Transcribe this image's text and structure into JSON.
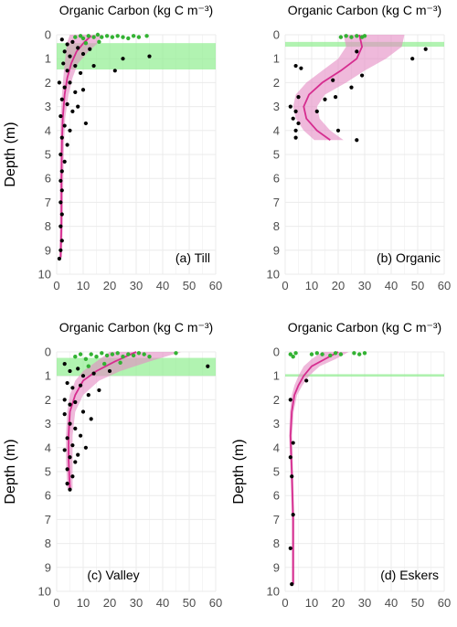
{
  "figure": {
    "colors": {
      "grid": "#ebebeb",
      "axis_text": "#4d4d4d",
      "profile_line": "#d62d8f",
      "profile_band": "#e58bc3",
      "surface_points": "#33b233",
      "deep_points": "#000000",
      "horizon_band": "#90ee90"
    }
  },
  "chart_data": [
    {
      "panel_id": "till",
      "type": "scatter",
      "title": "Organic Carbon (kg C m⁻³)",
      "ylabel": "Depth (m)",
      "panel_label": "(a) Till",
      "xlim": [
        0,
        60
      ],
      "ylim": [
        10,
        0
      ],
      "x_ticks": [
        0,
        10,
        20,
        30,
        40,
        50,
        60
      ],
      "y_ticks": [
        0,
        1,
        2,
        3,
        4,
        5,
        6,
        7,
        8,
        9,
        10
      ],
      "horizon_band": [
        0.35,
        1.45
      ],
      "fitted_curve": {
        "depth": [
          0.05,
          0.3,
          0.7,
          1.2,
          1.8,
          2.5,
          3.5,
          4.5,
          6,
          8,
          9.3
        ],
        "value": [
          13,
          10.5,
          7.5,
          5.5,
          4,
          3,
          2.3,
          2,
          1.8,
          1.8,
          1.5
        ]
      },
      "fitted_band": {
        "depth": [
          0,
          0.3,
          0.7,
          1.2,
          1.8,
          2.5,
          3.5,
          4.5,
          6,
          8,
          9.3
        ],
        "lower": [
          5,
          4,
          3.5,
          3,
          2.5,
          2,
          1.5,
          1.3,
          1.2,
          1.2,
          1
        ],
        "upper": [
          17,
          16,
          12,
          8,
          6,
          4.5,
          3.2,
          2.8,
          2.5,
          2.3,
          2
        ]
      },
      "surface_points": [
        {
          "x": 7,
          "y": 0.1
        },
        {
          "x": 9,
          "y": 0.05
        },
        {
          "x": 10,
          "y": 0.15
        },
        {
          "x": 12,
          "y": 0.05
        },
        {
          "x": 14,
          "y": 0.1
        },
        {
          "x": 15.5,
          "y": 0
        },
        {
          "x": 17,
          "y": 0.1
        },
        {
          "x": 19,
          "y": 0.05
        },
        {
          "x": 21,
          "y": 0.1
        },
        {
          "x": 23,
          "y": 0.05
        },
        {
          "x": 25,
          "y": 0.1
        },
        {
          "x": 27,
          "y": 0.15
        },
        {
          "x": 29,
          "y": 0.05
        },
        {
          "x": 31,
          "y": 0.1
        },
        {
          "x": 34,
          "y": 0.05
        },
        {
          "x": 11,
          "y": 0.35
        },
        {
          "x": 16,
          "y": 0.3
        }
      ],
      "deep_points": [
        {
          "x": 2,
          "y": 0.2
        },
        {
          "x": 4,
          "y": 0.4
        },
        {
          "x": 6,
          "y": 0.3
        },
        {
          "x": 3,
          "y": 0.7
        },
        {
          "x": 5,
          "y": 0.9
        },
        {
          "x": 8,
          "y": 0.55
        },
        {
          "x": 10,
          "y": 0.8
        },
        {
          "x": 12.5,
          "y": 0.6
        },
        {
          "x": 35,
          "y": 0.9
        },
        {
          "x": 2.5,
          "y": 1.2
        },
        {
          "x": 4,
          "y": 1.5
        },
        {
          "x": 7,
          "y": 1.3
        },
        {
          "x": 9,
          "y": 1.6
        },
        {
          "x": 14,
          "y": 1.3
        },
        {
          "x": 22,
          "y": 1.5
        },
        {
          "x": 25,
          "y": 1.0
        },
        {
          "x": 1,
          "y": 2.0
        },
        {
          "x": 3,
          "y": 2.2
        },
        {
          "x": 5,
          "y": 2.0
        },
        {
          "x": 7,
          "y": 2.4
        },
        {
          "x": 10,
          "y": 2.3
        },
        {
          "x": 2,
          "y": 2.7
        },
        {
          "x": 4,
          "y": 2.9
        },
        {
          "x": 6,
          "y": 3.2
        },
        {
          "x": 8,
          "y": 3.0
        },
        {
          "x": 11,
          "y": 3.7
        },
        {
          "x": 1.5,
          "y": 3.4
        },
        {
          "x": 3,
          "y": 3.8
        },
        {
          "x": 5,
          "y": 4.0
        },
        {
          "x": 2,
          "y": 4.3
        },
        {
          "x": 4,
          "y": 4.6
        },
        {
          "x": 1.5,
          "y": 5.0
        },
        {
          "x": 3,
          "y": 5.3
        },
        {
          "x": 2,
          "y": 5.7
        },
        {
          "x": 1.5,
          "y": 6.1
        },
        {
          "x": 2,
          "y": 6.5
        },
        {
          "x": 1.5,
          "y": 7.0
        },
        {
          "x": 2,
          "y": 7.5
        },
        {
          "x": 1.5,
          "y": 8.0
        },
        {
          "x": 2,
          "y": 8.6
        },
        {
          "x": 1.5,
          "y": 9.0
        },
        {
          "x": 1,
          "y": 9.35
        }
      ]
    },
    {
      "panel_id": "organic",
      "type": "scatter",
      "title": "Organic Carbon (kg C m⁻³)",
      "ylabel": "",
      "panel_label": "(b) Organic",
      "xlim": [
        0,
        60
      ],
      "ylim": [
        10,
        0
      ],
      "x_ticks": [
        0,
        10,
        20,
        30,
        40,
        50,
        60
      ],
      "y_ticks": [
        0,
        1,
        2,
        3,
        4,
        5,
        6,
        7,
        8,
        9,
        10
      ],
      "horizon_band": [
        0.3,
        0.5
      ],
      "fitted_curve": {
        "depth": [
          0,
          0.5,
          1.0,
          1.5,
          2.0,
          2.5,
          3.0,
          3.5,
          4.0,
          4.4
        ],
        "value": [
          28,
          29,
          27,
          21,
          14,
          9,
          7,
          8,
          12,
          17
        ]
      },
      "fitted_band": {
        "depth": [
          0,
          0.5,
          1.0,
          1.5,
          2.0,
          2.5,
          3.0,
          3.5,
          4.0,
          4.4
        ],
        "lower": [
          22,
          23,
          20,
          14,
          8,
          4,
          3,
          4,
          7,
          11
        ],
        "upper": [
          45,
          44,
          38,
          30,
          23,
          15,
          12,
          13,
          17,
          22
        ]
      },
      "surface_points": [
        {
          "x": 21,
          "y": 0.1
        },
        {
          "x": 23,
          "y": 0.05
        },
        {
          "x": 25,
          "y": 0.1
        },
        {
          "x": 27,
          "y": 0.05
        },
        {
          "x": 29,
          "y": 0.1
        },
        {
          "x": 30,
          "y": 0.05
        }
      ],
      "deep_points": [
        {
          "x": 53,
          "y": 0.6
        },
        {
          "x": 48,
          "y": 1.0
        },
        {
          "x": 27,
          "y": 0.7
        },
        {
          "x": 4,
          "y": 1.3
        },
        {
          "x": 6,
          "y": 1.4
        },
        {
          "x": 29,
          "y": 1.7
        },
        {
          "x": 18,
          "y": 1.9
        },
        {
          "x": 25,
          "y": 2.2
        },
        {
          "x": 5,
          "y": 2.6
        },
        {
          "x": 19,
          "y": 2.6
        },
        {
          "x": 15,
          "y": 2.7
        },
        {
          "x": 2,
          "y": 3.0
        },
        {
          "x": 4,
          "y": 3.2
        },
        {
          "x": 12,
          "y": 3.2
        },
        {
          "x": 3,
          "y": 3.5
        },
        {
          "x": 5,
          "y": 3.7
        },
        {
          "x": 4,
          "y": 4.0
        },
        {
          "x": 20,
          "y": 4.0
        },
        {
          "x": 4,
          "y": 4.3
        },
        {
          "x": 27,
          "y": 4.4
        }
      ]
    },
    {
      "panel_id": "valley",
      "type": "scatter",
      "title": "Organic Carbon (kg C m⁻³)",
      "ylabel": "Depth (m)",
      "panel_label": "(c) Valley",
      "xlim": [
        0,
        60
      ],
      "ylim": [
        10,
        0
      ],
      "x_ticks": [
        0,
        10,
        20,
        30,
        40,
        50,
        60
      ],
      "y_ticks": [
        0,
        1,
        2,
        3,
        4,
        5,
        6,
        7,
        8,
        9,
        10
      ],
      "horizon_band": [
        0.25,
        1.0
      ],
      "fitted_curve": {
        "depth": [
          0,
          0.4,
          0.8,
          1.2,
          1.8,
          2.5,
          3.5,
          4.5,
          5.7
        ],
        "value": [
          30,
          22,
          15,
          10,
          7,
          5,
          4.5,
          4.5,
          5
        ]
      },
      "fitted_band": {
        "depth": [
          0,
          0.4,
          0.8,
          1.2,
          1.8,
          2.5,
          3.5,
          4.5,
          5.7
        ],
        "lower": [
          20,
          15,
          10,
          7,
          5,
          4,
          3.5,
          3.5,
          4
        ],
        "upper": [
          47,
          35,
          24,
          16,
          10,
          7,
          6,
          6,
          6
        ]
      },
      "surface_points": [
        {
          "x": 7,
          "y": 0.2
        },
        {
          "x": 9,
          "y": 0.1
        },
        {
          "x": 11,
          "y": 0.3
        },
        {
          "x": 13,
          "y": 0.1
        },
        {
          "x": 15,
          "y": 0.2
        },
        {
          "x": 17,
          "y": 0.05
        },
        {
          "x": 19,
          "y": 0.15
        },
        {
          "x": 21,
          "y": 0.1
        },
        {
          "x": 23,
          "y": 0.05
        },
        {
          "x": 25,
          "y": 0.2
        },
        {
          "x": 27,
          "y": 0.1
        },
        {
          "x": 29,
          "y": 0.15
        },
        {
          "x": 31,
          "y": 0.05
        },
        {
          "x": 33,
          "y": 0.1
        },
        {
          "x": 35,
          "y": 0.2
        },
        {
          "x": 45,
          "y": 0.05
        },
        {
          "x": 12,
          "y": 0.6
        },
        {
          "x": 18,
          "y": 0.5
        },
        {
          "x": 24,
          "y": 0.45
        }
      ],
      "deep_points": [
        {
          "x": 57,
          "y": 0.6
        },
        {
          "x": 3,
          "y": 0.5
        },
        {
          "x": 5,
          "y": 0.8
        },
        {
          "x": 8,
          "y": 0.7
        },
        {
          "x": 10,
          "y": 1.0
        },
        {
          "x": 14,
          "y": 0.9
        },
        {
          "x": 20,
          "y": 0.8
        },
        {
          "x": 4,
          "y": 1.3
        },
        {
          "x": 6,
          "y": 1.5
        },
        {
          "x": 9,
          "y": 1.4
        },
        {
          "x": 12,
          "y": 1.8
        },
        {
          "x": 16,
          "y": 1.6
        },
        {
          "x": 3,
          "y": 2.0
        },
        {
          "x": 5,
          "y": 2.2
        },
        {
          "x": 7,
          "y": 2.1
        },
        {
          "x": 10,
          "y": 2.5
        },
        {
          "x": 13,
          "y": 2.8
        },
        {
          "x": 3,
          "y": 2.6
        },
        {
          "x": 5,
          "y": 3.0
        },
        {
          "x": 7,
          "y": 3.2
        },
        {
          "x": 9,
          "y": 3.5
        },
        {
          "x": 4,
          "y": 3.6
        },
        {
          "x": 6,
          "y": 3.9
        },
        {
          "x": 3,
          "y": 4.1
        },
        {
          "x": 5,
          "y": 4.4
        },
        {
          "x": 7,
          "y": 4.6
        },
        {
          "x": 4,
          "y": 4.9
        },
        {
          "x": 6,
          "y": 5.2
        },
        {
          "x": 4,
          "y": 5.5
        },
        {
          "x": 5,
          "y": 5.75
        },
        {
          "x": 11,
          "y": 4.0
        },
        {
          "x": 8,
          "y": 4.3
        }
      ]
    },
    {
      "panel_id": "eskers",
      "type": "scatter",
      "title": "Organic Carbon (kg C m⁻³)",
      "ylabel": "Depth (m)",
      "panel_label": "(d) Eskers",
      "xlim": [
        0,
        60
      ],
      "ylim": [
        10,
        0
      ],
      "x_ticks": [
        0,
        10,
        20,
        30,
        40,
        50,
        60
      ],
      "y_ticks": [
        0,
        1,
        2,
        3,
        4,
        5,
        6,
        7,
        8,
        9,
        10
      ],
      "horizon_band": [
        0.93,
        1.03
      ],
      "fitted_curve": {
        "depth": [
          0,
          0.3,
          0.6,
          1.0,
          1.4,
          1.8,
          2.5,
          3.5,
          5,
          7,
          9.7
        ],
        "value": [
          20,
          15,
          10,
          7,
          5,
          3.5,
          2.5,
          2,
          2.5,
          3,
          3
        ]
      },
      "fitted_band": {
        "depth": [
          0,
          0.3,
          0.6,
          1.0,
          1.4,
          1.8,
          2.5,
          3.5,
          5,
          7,
          9.7
        ],
        "lower": [
          14,
          10,
          7,
          5,
          3.5,
          2.5,
          1.8,
          1.5,
          2,
          2.5,
          2.5
        ],
        "upper": [
          24,
          19,
          13,
          9,
          6.5,
          4.5,
          3.2,
          2.6,
          3,
          3.5,
          3.5
        ]
      },
      "surface_points": [
        {
          "x": 2,
          "y": 0.1
        },
        {
          "x": 4,
          "y": 0.05
        },
        {
          "x": 10,
          "y": 0.1
        },
        {
          "x": 12,
          "y": 0.05
        },
        {
          "x": 14,
          "y": 0.1
        },
        {
          "x": 17,
          "y": 0.15
        },
        {
          "x": 19,
          "y": 0.05
        },
        {
          "x": 21,
          "y": 0.1
        },
        {
          "x": 26,
          "y": 0.05
        },
        {
          "x": 28,
          "y": 0.1
        },
        {
          "x": 30,
          "y": 0.05
        },
        {
          "x": 3,
          "y": 0.2
        }
      ],
      "deep_points": [
        {
          "x": 8,
          "y": 1.2
        },
        {
          "x": 2,
          "y": 2.0
        },
        {
          "x": 3,
          "y": 3.8
        },
        {
          "x": 2,
          "y": 4.4
        },
        {
          "x": 2.5,
          "y": 5.2
        },
        {
          "x": 3,
          "y": 6.8
        },
        {
          "x": 2,
          "y": 8.2
        },
        {
          "x": 2.5,
          "y": 9.7
        }
      ]
    }
  ]
}
